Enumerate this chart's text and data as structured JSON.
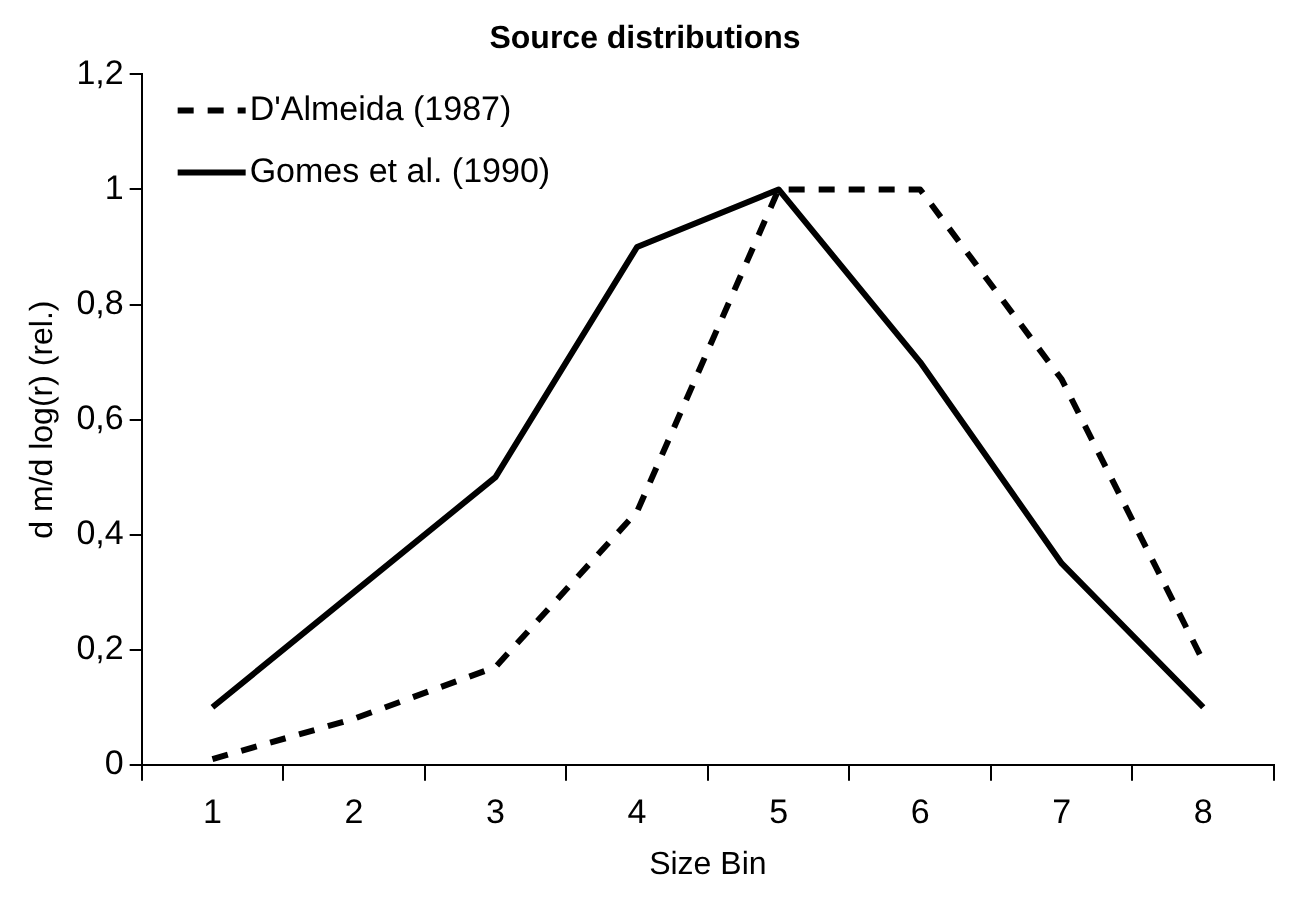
{
  "chart_data": {
    "type": "line",
    "title": "Source distributions",
    "xlabel": "Size Bin",
    "ylabel": "d m/d log(r) (rel.)",
    "categories": [
      "1",
      "2",
      "3",
      "4",
      "5",
      "6",
      "7",
      "8"
    ],
    "series": [
      {
        "name": "D'Almeida (1987)",
        "color": "#000000",
        "line_style": "dashed",
        "values": [
          0.01,
          0.08,
          0.17,
          0.44,
          1,
          1,
          0.67,
          0.18
        ]
      },
      {
        "name": "Gomes et al. (1990)",
        "color": "#000000",
        "line_style": "solid",
        "values": [
          0.1,
          0.3,
          0.5,
          0.9,
          1,
          0.7,
          0.35,
          0.1
        ]
      }
    ],
    "ylim": [
      0,
      1.2
    ],
    "yticks": [
      0,
      {
        "value": 0.2,
        "label": "0,2"
      },
      {
        "value": 0.4,
        "label": "0,4"
      },
      {
        "value": 0.6,
        "label": "0,6"
      },
      {
        "value": 0.8,
        "label": "0,8"
      },
      1,
      {
        "value": 1.2,
        "label": "1,2"
      }
    ],
    "grid": false,
    "legend": "top left",
    "marker": "none"
  }
}
